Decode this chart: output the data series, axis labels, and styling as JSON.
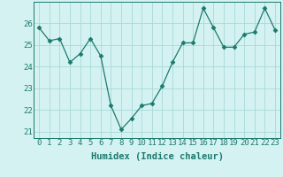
{
  "x": [
    0,
    1,
    2,
    3,
    4,
    5,
    6,
    7,
    8,
    9,
    10,
    11,
    12,
    13,
    14,
    15,
    16,
    17,
    18,
    19,
    20,
    21,
    22,
    23
  ],
  "y": [
    25.8,
    25.2,
    25.3,
    24.2,
    24.6,
    25.3,
    24.5,
    22.2,
    21.1,
    21.6,
    22.2,
    22.3,
    23.1,
    24.2,
    25.1,
    25.1,
    26.7,
    25.8,
    24.9,
    24.9,
    25.5,
    25.6,
    26.7,
    25.7
  ],
  "xlabel": "Humidex (Indice chaleur)",
  "ylim": [
    20.7,
    27.0
  ],
  "xlim": [
    -0.5,
    23.5
  ],
  "yticks": [
    21,
    22,
    23,
    24,
    25,
    26
  ],
  "xticks": [
    0,
    1,
    2,
    3,
    4,
    5,
    6,
    7,
    8,
    9,
    10,
    11,
    12,
    13,
    14,
    15,
    16,
    17,
    18,
    19,
    20,
    21,
    22,
    23
  ],
  "line_color": "#1a7a6e",
  "marker": "D",
  "marker_size": 2.5,
  "bg_color": "#d5f2f2",
  "grid_color": "#a8d8d8",
  "label_fontsize": 7.5,
  "tick_fontsize": 6.5
}
